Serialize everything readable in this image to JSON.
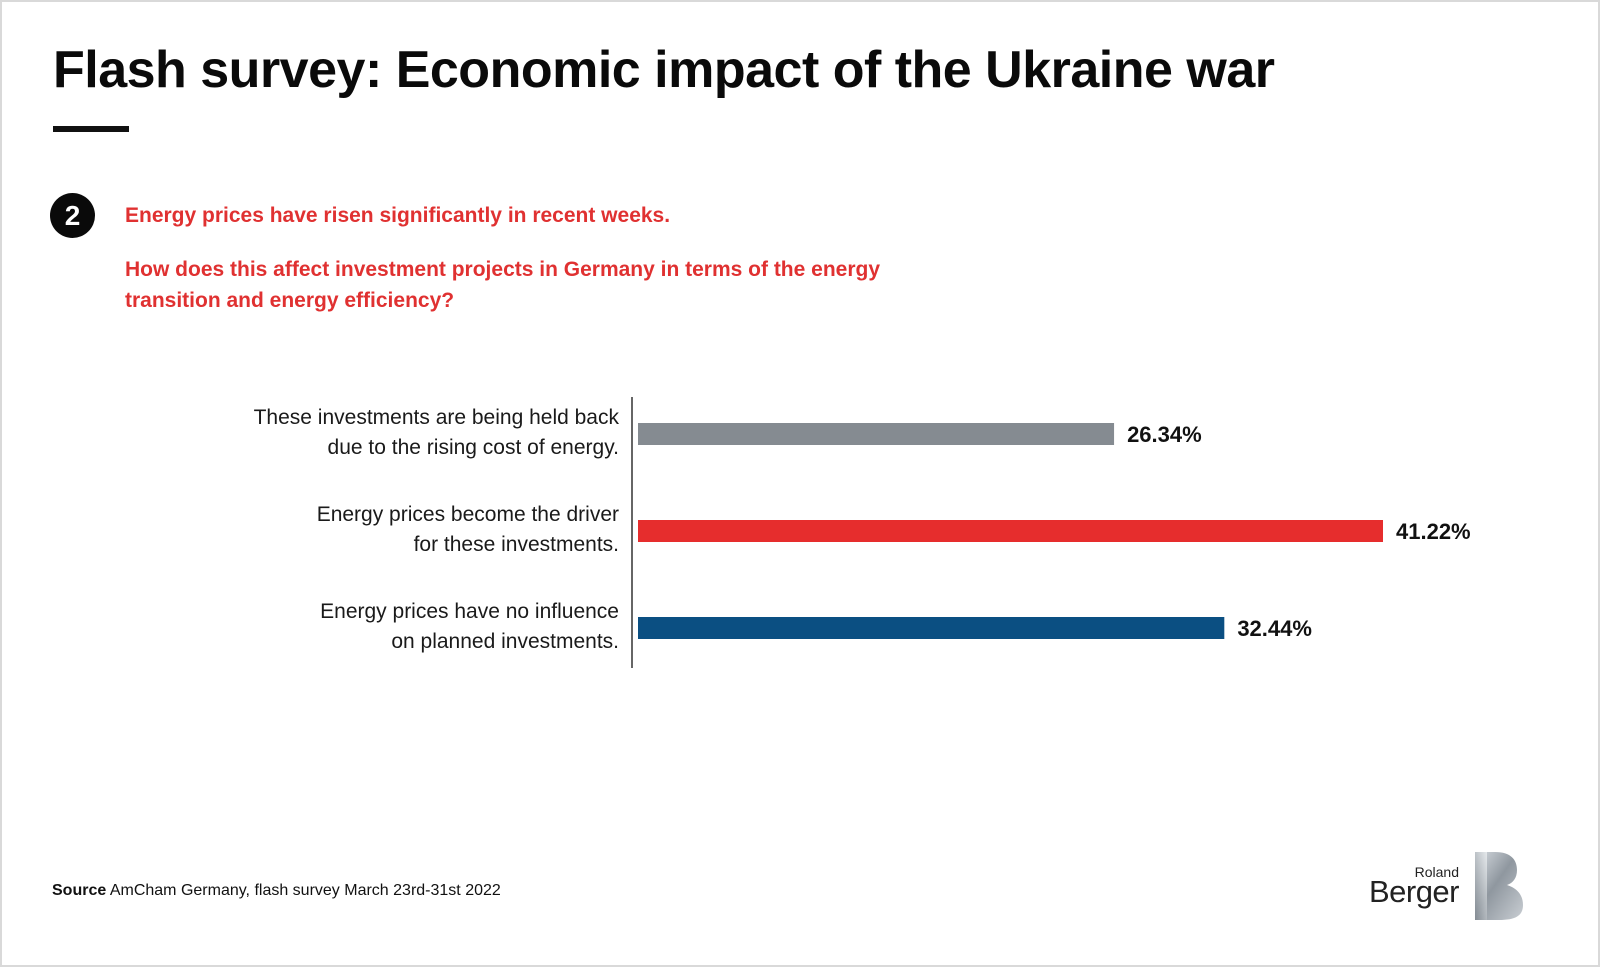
{
  "header": {
    "title": "Flash survey: Economic impact of the Ukraine war",
    "badge": "2",
    "question_line1": "Energy prices have risen significantly in recent weeks.",
    "question_line2": "How does this affect investment projects in Germany in terms of the energy transition and energy efficiency?"
  },
  "chart_data": {
    "type": "bar",
    "orientation": "horizontal",
    "categories": [
      [
        "These investments are being held back",
        "due to the rising cost of energy."
      ],
      [
        "Energy prices become the driver",
        "for these investments."
      ],
      [
        "Energy prices have no influence",
        "on planned investments."
      ]
    ],
    "values": [
      26.34,
      41.22,
      32.44
    ],
    "value_labels": [
      "26.34%",
      "41.22%",
      "32.44%"
    ],
    "colors": [
      "#858b91",
      "#e62d2d",
      "#0b4f82"
    ],
    "xlim": [
      0,
      41.22
    ],
    "grid": false,
    "legend": "none"
  },
  "footer": {
    "source_label": "Source",
    "source_text": "AmCham Germany, flash survey March 23rd-31st 2022"
  },
  "logo": {
    "line1": "Roland",
    "line2": "Berger",
    "icon": "roland-berger-b-logo"
  }
}
